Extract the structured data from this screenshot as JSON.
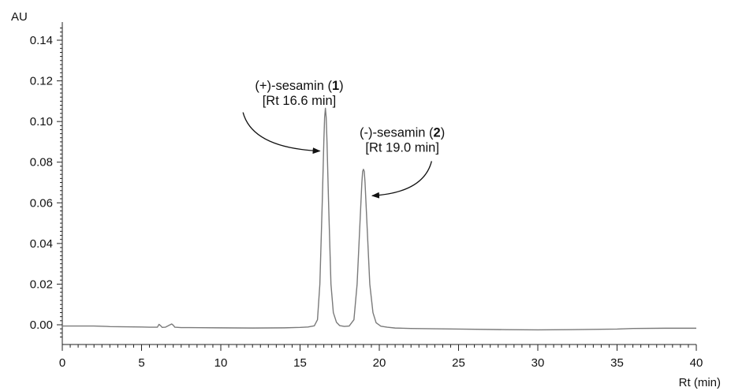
{
  "chart_data": {
    "type": "line",
    "title": "",
    "xlabel": "Rt (min)",
    "ylabel": "AU",
    "xlim": [
      0,
      40
    ],
    "ylim": [
      -0.008,
      0.148
    ],
    "x_ticks": [
      0,
      5,
      10,
      15,
      20,
      25,
      30,
      35,
      40
    ],
    "x_tick_labels": [
      "0",
      "5",
      "10",
      "15",
      "20",
      "25",
      "30",
      "35",
      "40"
    ],
    "y_ticks": [
      0.0,
      0.02,
      0.04,
      0.06,
      0.08,
      0.1,
      0.12,
      0.14
    ],
    "y_tick_labels": [
      "0.00",
      "0.02",
      "0.04",
      "0.06",
      "0.08",
      "0.10",
      "0.12",
      "0.14"
    ],
    "grid": false,
    "line_color": "#7a7a7a",
    "series": [
      {
        "x": [
          0,
          2,
          2.8,
          3,
          5,
          5.5,
          6,
          6.1,
          6.2,
          6.3,
          6.5,
          6.8,
          6.9,
          7.0,
          7.1,
          7.3,
          7.5,
          8,
          10,
          12,
          14,
          15,
          15.5,
          15.9,
          16.1,
          16.25,
          16.4,
          16.5,
          16.55,
          16.6,
          16.65,
          16.7,
          16.8,
          16.95,
          17.1,
          17.3,
          17.5,
          17.8,
          18.1,
          18.4,
          18.6,
          18.75,
          18.9,
          18.95,
          19.0,
          19.05,
          19.1,
          19.25,
          19.4,
          19.6,
          19.8,
          20.1,
          20.5,
          21,
          22,
          25,
          28,
          30,
          32,
          35,
          36,
          38,
          40
        ],
        "y": [
          -0.0006,
          -0.0006,
          -0.0008,
          -0.0009,
          -0.0011,
          -0.0012,
          -0.0012,
          0.0002,
          -0.0004,
          -0.0013,
          -0.0012,
          0.0,
          0.0004,
          -0.0002,
          -0.0012,
          -0.0013,
          -0.0014,
          -0.0014,
          -0.0015,
          -0.0016,
          -0.0015,
          -0.0013,
          -0.0011,
          -0.0005,
          0.0025,
          0.02,
          0.06,
          0.09,
          0.102,
          0.1065,
          0.102,
          0.09,
          0.06,
          0.02,
          0.006,
          0.0012,
          -0.0004,
          -0.0008,
          -0.0006,
          0.0025,
          0.02,
          0.045,
          0.07,
          0.0755,
          0.0765,
          0.0755,
          0.07,
          0.045,
          0.02,
          0.006,
          0.001,
          -0.0007,
          -0.0012,
          -0.0016,
          -0.0018,
          -0.0021,
          -0.0024,
          -0.0025,
          -0.0024,
          -0.0021,
          -0.0018,
          -0.0017,
          -0.0017
        ]
      }
    ],
    "annotations": [
      {
        "line1_pre": "(+)-sesamin (",
        "line1_bold": "1",
        "line1_post": ")",
        "line2": "[Rt 16.6 min]",
        "text_anchor": [
          14.95,
          0.1155
        ],
        "arrow_from": [
          11.4,
          0.1045
        ],
        "arrow_ctrl": [
          12.0,
          0.087
        ],
        "arrow_to": [
          16.25,
          0.0855
        ]
      },
      {
        "line1_pre": "(-)-sesamin (",
        "line1_bold": "2",
        "line1_post": ")",
        "line2": "[Rt 19.0 min]",
        "text_anchor": [
          21.45,
          0.0925
        ],
        "arrow_from": [
          23.3,
          0.0805
        ],
        "arrow_ctrl": [
          22.8,
          0.065
        ],
        "arrow_to": [
          19.55,
          0.0635
        ]
      }
    ]
  }
}
